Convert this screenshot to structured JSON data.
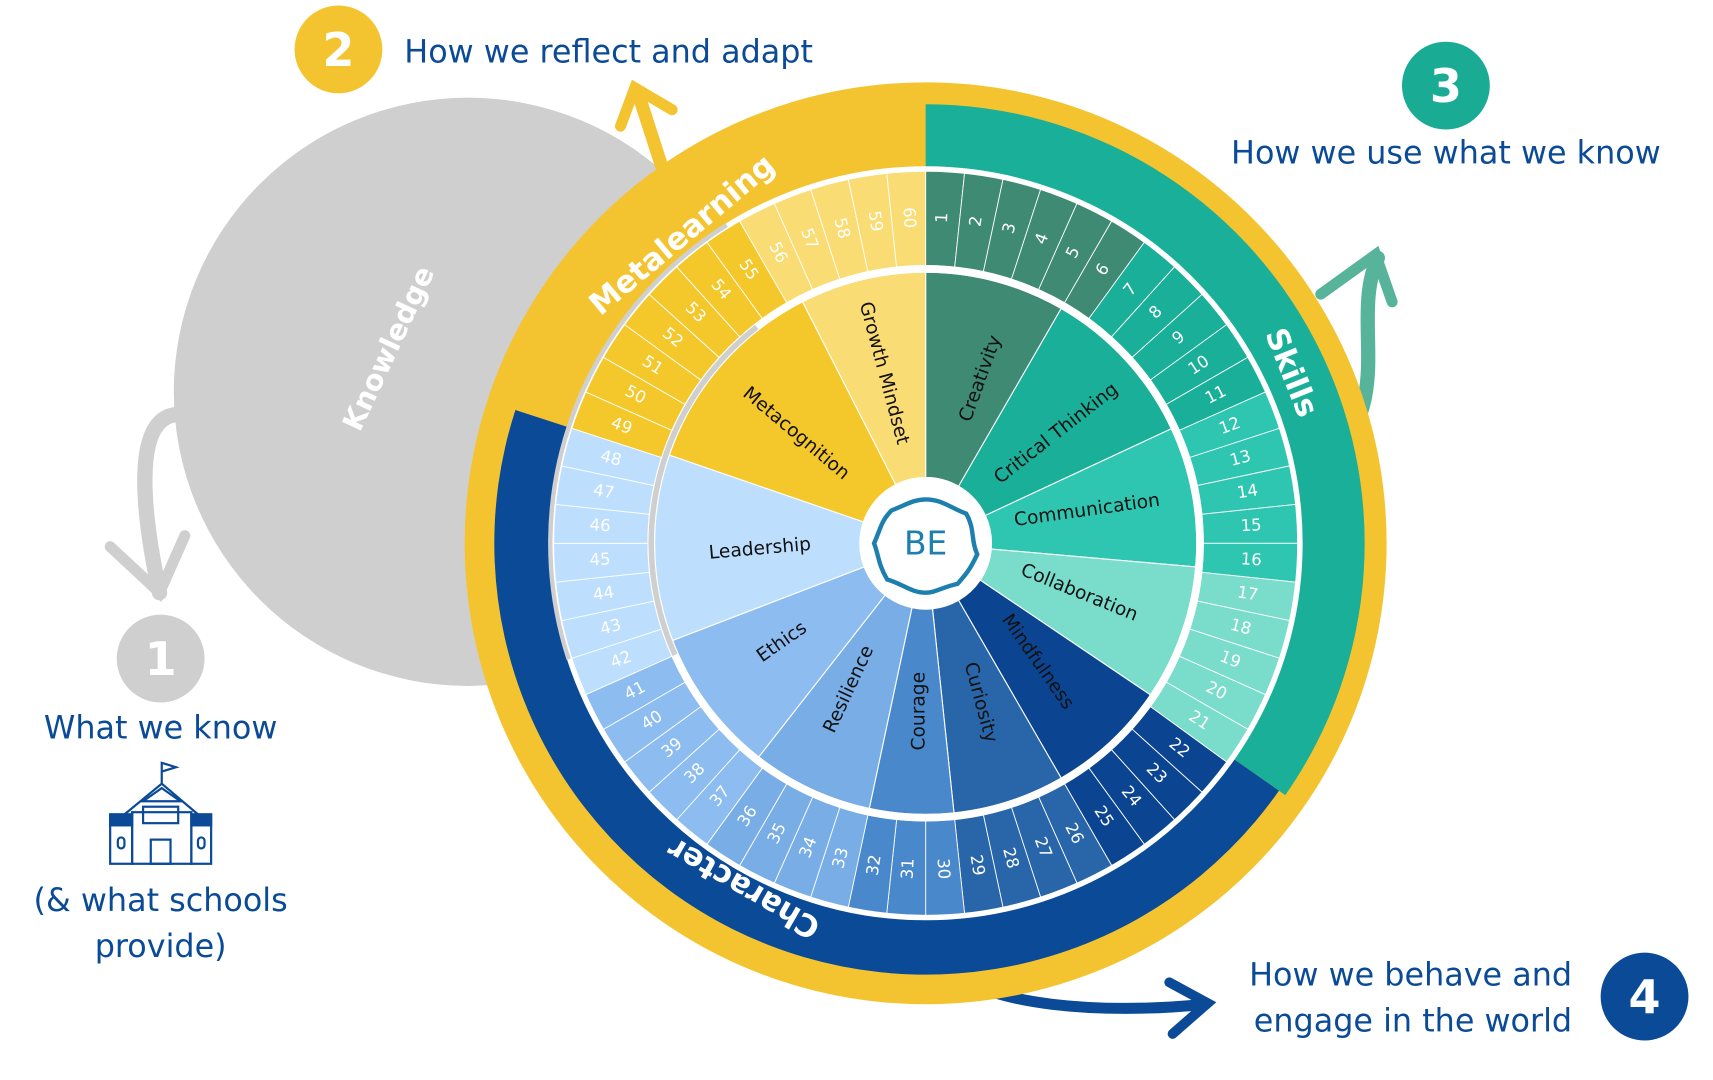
{
  "steps": [
    {
      "number": "1",
      "lines": [
        "What we know"
      ],
      "sub_lines": [
        "(& what schools",
        "provide)"
      ],
      "color": "#cfcfcf"
    },
    {
      "number": "2",
      "lines": [
        "How we reflect and adapt"
      ],
      "color": "#f4c430"
    },
    {
      "number": "3",
      "lines": [
        "How we use what we know"
      ],
      "color": "#1aab94"
    },
    {
      "number": "4",
      "lines": [
        "How we behave and",
        "engage in the world"
      ],
      "color": "#0a4a97"
    }
  ],
  "knowledge": {
    "label": "Knowledge",
    "color": "#cfcfcf"
  },
  "wheel": {
    "center_logo": "BE",
    "domains": [
      {
        "name": "Skills",
        "color": "#1aaf98"
      },
      {
        "name": "Character",
        "color": "#0a4a97"
      },
      {
        "name": "Metalearning",
        "color": "#f4c430"
      }
    ],
    "competencies": [
      {
        "name": "Creativity",
        "domain": "Skills",
        "color": "#3f8a72",
        "elements": [
          1,
          6
        ]
      },
      {
        "name": "Critical Thinking",
        "domain": "Skills",
        "color": "#1aaf98",
        "elements": [
          7,
          11
        ]
      },
      {
        "name": "Communication",
        "domain": "Skills",
        "color": "#2ec6b0",
        "elements": [
          12,
          16
        ]
      },
      {
        "name": "Collaboration",
        "domain": "Skills",
        "color": "#7adccb",
        "elements": [
          17,
          21
        ]
      },
      {
        "name": "Mindfulness",
        "domain": "Character",
        "color": "#0b4591",
        "elements": [
          22,
          25
        ]
      },
      {
        "name": "Curiosity",
        "domain": "Character",
        "color": "#2865a9",
        "elements": [
          26,
          29
        ]
      },
      {
        "name": "Courage",
        "domain": "Character",
        "color": "#4a88cc",
        "elements": [
          30,
          32
        ]
      },
      {
        "name": "Resilience",
        "domain": "Character",
        "color": "#78ade6",
        "elements": [
          33,
          36
        ]
      },
      {
        "name": "Ethics",
        "domain": "Character",
        "color": "#8cbcf0",
        "elements": [
          37,
          41
        ]
      },
      {
        "name": "Leadership",
        "domain": "Character",
        "color": "#bddffd",
        "elements": [
          42,
          48
        ]
      },
      {
        "name": "Metacognition",
        "domain": "Metalearning",
        "color": "#f4c72a",
        "elements": [
          49,
          55
        ]
      },
      {
        "name": "Growth Mindset",
        "domain": "Metalearning",
        "color": "#f9dc73",
        "elements": [
          56,
          60
        ]
      }
    ],
    "element_count": 60
  }
}
